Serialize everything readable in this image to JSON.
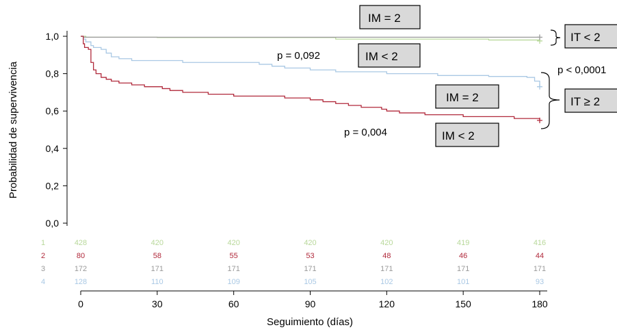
{
  "chart_data": {
    "type": "line",
    "xlabel": "Seguimiento (días)",
    "ylabel": "Probabilidad de supervivencia",
    "xlim": [
      0,
      180
    ],
    "ylim": [
      0,
      1
    ],
    "x_ticks": [
      0,
      30,
      60,
      90,
      120,
      150,
      180
    ],
    "x_tick_labels": [
      "0",
      "30",
      "60",
      "90",
      "120",
      "150",
      "180"
    ],
    "y_ticks": [
      0,
      0.2,
      0.4,
      0.6,
      0.8,
      1.0
    ],
    "y_tick_labels": [
      "0,0",
      "0,2",
      "0,4",
      "0,6",
      "0,8",
      "1,0"
    ],
    "grid": false,
    "series": [
      {
        "id": "1",
        "color": "#b8d89a",
        "steps": [
          [
            0,
            1.0
          ],
          [
            2,
            0.995
          ],
          [
            30,
            0.993
          ],
          [
            100,
            0.985
          ],
          [
            160,
            0.98
          ],
          [
            180,
            0.975
          ]
        ]
      },
      {
        "id": "2",
        "color": "#b0283a",
        "steps": [
          [
            0,
            1.0
          ],
          [
            1,
            0.96
          ],
          [
            1.5,
            0.94
          ],
          [
            3,
            0.93
          ],
          [
            4,
            0.86
          ],
          [
            5,
            0.82
          ],
          [
            6,
            0.8
          ],
          [
            8,
            0.78
          ],
          [
            10,
            0.77
          ],
          [
            12,
            0.76
          ],
          [
            15,
            0.75
          ],
          [
            20,
            0.74
          ],
          [
            25,
            0.73
          ],
          [
            32,
            0.72
          ],
          [
            35,
            0.71
          ],
          [
            40,
            0.7
          ],
          [
            50,
            0.69
          ],
          [
            60,
            0.68
          ],
          [
            80,
            0.67
          ],
          [
            90,
            0.66
          ],
          [
            95,
            0.65
          ],
          [
            100,
            0.64
          ],
          [
            105,
            0.63
          ],
          [
            110,
            0.62
          ],
          [
            118,
            0.61
          ],
          [
            120,
            0.6
          ],
          [
            125,
            0.59
          ],
          [
            135,
            0.58
          ],
          [
            150,
            0.57
          ],
          [
            170,
            0.56
          ],
          [
            180,
            0.55
          ]
        ]
      },
      {
        "id": "3",
        "color": "#999999",
        "steps": [
          [
            0,
            1.0
          ],
          [
            1,
            0.995
          ],
          [
            180,
            0.995
          ]
        ]
      },
      {
        "id": "4",
        "color": "#a9c8e4",
        "steps": [
          [
            0,
            1.0
          ],
          [
            1,
            0.985
          ],
          [
            2,
            0.97
          ],
          [
            4,
            0.95
          ],
          [
            5,
            0.94
          ],
          [
            8,
            0.93
          ],
          [
            10,
            0.91
          ],
          [
            12,
            0.89
          ],
          [
            15,
            0.88
          ],
          [
            20,
            0.87
          ],
          [
            25,
            0.87
          ],
          [
            40,
            0.86
          ],
          [
            60,
            0.86
          ],
          [
            70,
            0.85
          ],
          [
            75,
            0.84
          ],
          [
            80,
            0.83
          ],
          [
            90,
            0.82
          ],
          [
            100,
            0.81
          ],
          [
            120,
            0.8
          ],
          [
            140,
            0.79
          ],
          [
            160,
            0.785
          ],
          [
            175,
            0.78
          ],
          [
            178,
            0.76
          ],
          [
            180,
            0.73
          ]
        ]
      }
    ],
    "risk_table": {
      "rows": [
        {
          "label": "1",
          "color": "#b8d89a",
          "values": [
            "428",
            "420",
            "420",
            "420",
            "420",
            "419",
            "416"
          ]
        },
        {
          "label": "2",
          "color": "#b0283a",
          "values": [
            "80",
            "58",
            "55",
            "53",
            "48",
            "46",
            "44"
          ]
        },
        {
          "label": "3",
          "color": "#999999",
          "values": [
            "172",
            "171",
            "171",
            "171",
            "171",
            "171",
            "171"
          ]
        },
        {
          "label": "4",
          "color": "#a9c8e4",
          "values": [
            "128",
            "110",
            "109",
            "105",
            "102",
            "101",
            "93"
          ]
        }
      ]
    },
    "annotations": {
      "box_im_eq_top": "IM =  2",
      "box_im_lt_top": "IM <  2",
      "box_im_eq_mid": "IM =  2",
      "box_im_lt_bot": "IM <  2",
      "box_it_lt": "IT <  2",
      "box_it_ge": "IT ≥  2",
      "p_upper": "p = 0,092",
      "p_lower": "p = 0,004",
      "p_between": "p < 0,0001"
    }
  }
}
